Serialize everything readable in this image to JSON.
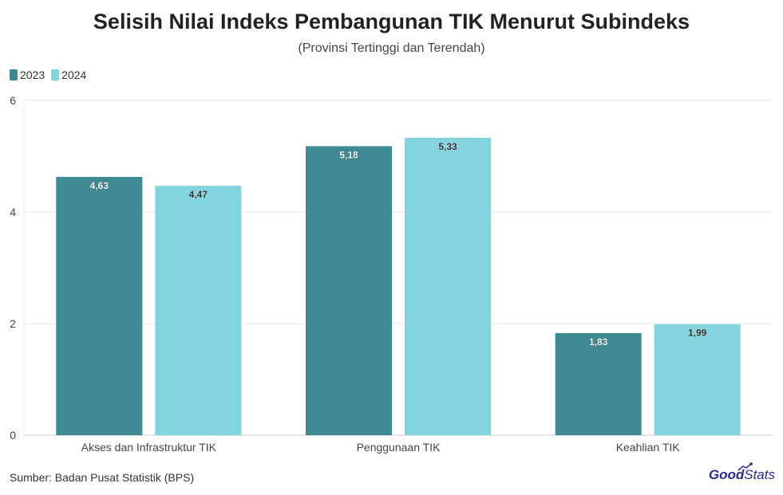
{
  "title": "Selisih Nilai Indeks Pembangunan TIK Menurut Subindeks",
  "subtitle": "(Provinsi Tertinggi dan Terendah)",
  "source": "Sumber: Badan Pusat Statistik (BPS)",
  "brand": {
    "part1": "Good",
    "part2": "Stats"
  },
  "colors": {
    "2023": "#3d8a92",
    "2024": "#82d4df",
    "grid": "#e8e8e8",
    "axis": "#cccccc"
  },
  "chart_data": {
    "type": "bar",
    "categories": [
      "Akses dan Infrastruktur TIK",
      "Penggunaan TIK",
      "Keahlian TIK"
    ],
    "series": [
      {
        "name": "2023",
        "values": [
          4.63,
          5.18,
          1.83
        ],
        "labels": [
          "4,63",
          "5,18",
          "1,83"
        ]
      },
      {
        "name": "2024",
        "values": [
          4.47,
          5.33,
          1.99
        ],
        "labels": [
          "4,47",
          "5,33",
          "1,99"
        ]
      }
    ],
    "ylim": [
      0,
      6
    ],
    "yticks": [
      0,
      2,
      4,
      6
    ],
    "grid": true,
    "legend": "top-left"
  }
}
